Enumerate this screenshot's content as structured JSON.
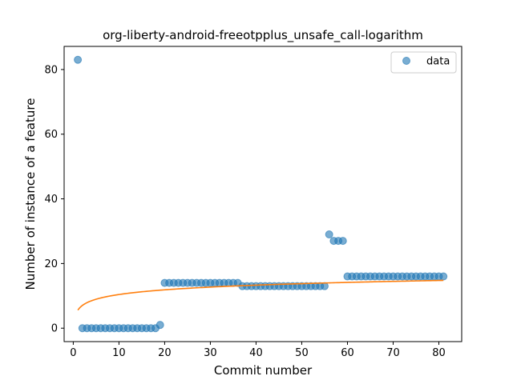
{
  "chart_data": {
    "type": "scatter",
    "title": "org-liberty-android-freeotpplus_unsafe_call-logarithm",
    "xlabel": "Commit number",
    "ylabel": "Number of instance of a feature",
    "xlim": [
      -2.0,
      85.0
    ],
    "ylim": [
      -4.15,
      87.15
    ],
    "xticks": [
      0,
      10,
      20,
      30,
      40,
      50,
      60,
      70,
      80
    ],
    "yticks": [
      0,
      20,
      40,
      60,
      80
    ],
    "grid": false,
    "legend_position": "top-right",
    "series": [
      {
        "name": "data",
        "kind": "scatter",
        "color": "#1f77b4",
        "x": [
          1,
          2,
          3,
          4,
          5,
          6,
          7,
          8,
          9,
          10,
          11,
          12,
          13,
          14,
          15,
          16,
          17,
          18,
          19,
          20,
          21,
          22,
          23,
          24,
          25,
          26,
          27,
          28,
          29,
          30,
          31,
          32,
          33,
          34,
          35,
          36,
          37,
          38,
          39,
          40,
          41,
          42,
          43,
          44,
          45,
          46,
          47,
          48,
          49,
          50,
          51,
          52,
          53,
          54,
          55,
          56,
          57,
          58,
          59,
          60,
          61,
          62,
          63,
          64,
          65,
          66,
          67,
          68,
          69,
          70,
          71,
          72,
          73,
          74,
          75,
          76,
          77,
          78,
          79,
          80,
          81
        ],
        "y": [
          83,
          0,
          0,
          0,
          0,
          0,
          0,
          0,
          0,
          0,
          0,
          0,
          0,
          0,
          0,
          0,
          0,
          0,
          1,
          14,
          14,
          14,
          14,
          14,
          14,
          14,
          14,
          14,
          14,
          14,
          14,
          14,
          14,
          14,
          14,
          14,
          13,
          13,
          13,
          13,
          13,
          13,
          13,
          13,
          13,
          13,
          13,
          13,
          13,
          13,
          13,
          13,
          13,
          13,
          13,
          29,
          27,
          27,
          27,
          16,
          16,
          16,
          16,
          16,
          16,
          16,
          16,
          16,
          16,
          16,
          16,
          16,
          16,
          16,
          16,
          16,
          16,
          16,
          16,
          16,
          16
        ]
      },
      {
        "name": "",
        "kind": "line",
        "color": "#ff7f0e",
        "fit": {
          "model": "a + b*ln(x)",
          "a": 5.6,
          "b": 2.09,
          "x_start": 1,
          "x_end": 81
        }
      }
    ]
  }
}
